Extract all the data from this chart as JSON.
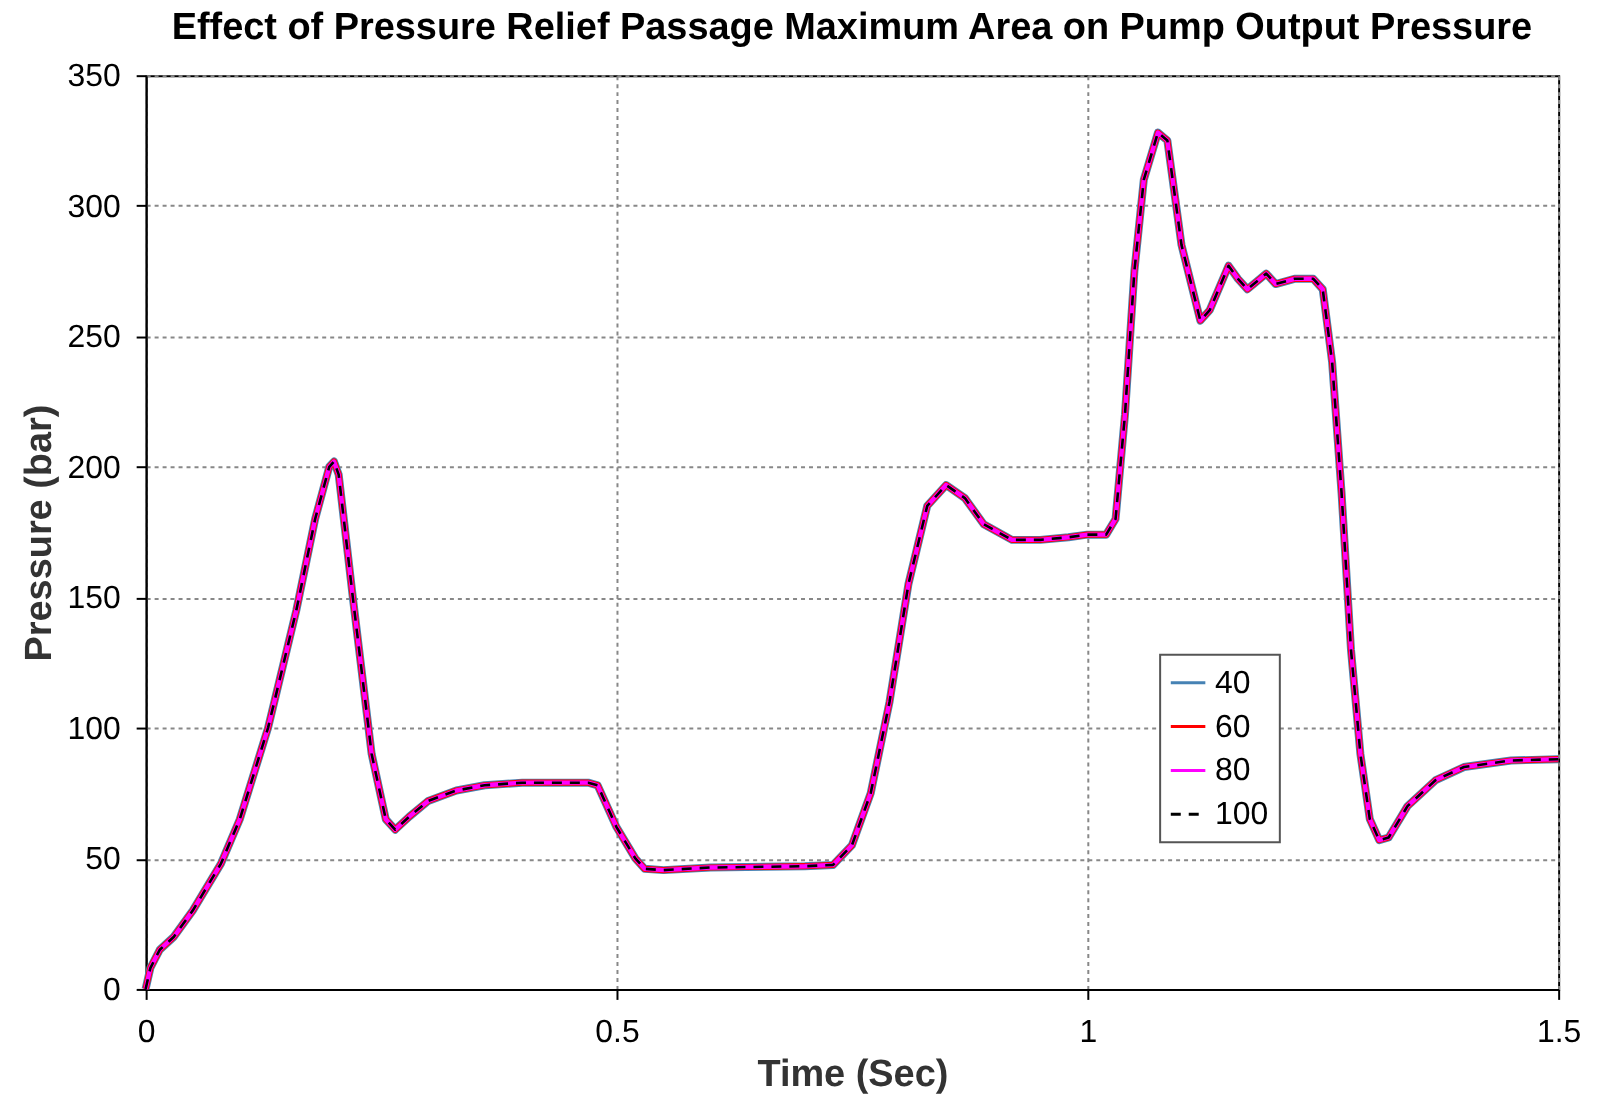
{
  "chart_data": {
    "type": "line",
    "title": "Effect of Pressure Relief Passage Maximum Area on Pump Output Pressure",
    "xlabel": "Time (Sec)",
    "ylabel": "Pressure (bar)",
    "x": [
      0,
      0.005,
      0.015,
      0.03,
      0.05,
      0.08,
      0.1,
      0.13,
      0.16,
      0.18,
      0.195,
      0.2,
      0.205,
      0.22,
      0.24,
      0.255,
      0.265,
      0.28,
      0.3,
      0.33,
      0.36,
      0.4,
      0.47,
      0.48,
      0.5,
      0.52,
      0.53,
      0.55,
      0.6,
      0.7,
      0.73,
      0.75,
      0.77,
      0.79,
      0.81,
      0.83,
      0.85,
      0.87,
      0.89,
      0.92,
      0.95,
      0.98,
      1.0,
      1.02,
      1.03,
      1.04,
      1.05,
      1.06,
      1.075,
      1.085,
      1.1,
      1.12,
      1.13,
      1.15,
      1.16,
      1.17,
      1.19,
      1.2,
      1.22,
      1.24,
      1.25,
      1.26,
      1.27,
      1.28,
      1.29,
      1.3,
      1.31,
      1.32,
      1.34,
      1.37,
      1.4,
      1.45,
      1.5
    ],
    "series": [
      {
        "name": "40",
        "color": "#4682b4",
        "line_style": "solid",
        "values": [
          0,
          8,
          15,
          20,
          30,
          48,
          65,
          100,
          145,
          180,
          200,
          202,
          197,
          150,
          90,
          65,
          61,
          66,
          72,
          76,
          78,
          79,
          79,
          78,
          62,
          50,
          46,
          45.5,
          46.5,
          47,
          47.5,
          55,
          75,
          110,
          155,
          185,
          193,
          188,
          178,
          172,
          172,
          173,
          174,
          174,
          180,
          220,
          275,
          310,
          328,
          325,
          285,
          256,
          260,
          277,
          272,
          268,
          274,
          270,
          272,
          272,
          268,
          240,
          190,
          130,
          90,
          65,
          57,
          58,
          70,
          80,
          85,
          87.5,
          88
        ]
      },
      {
        "name": "60",
        "color": "#ff0000",
        "line_style": "solid",
        "values": [
          0,
          8,
          15,
          20,
          30,
          48,
          65,
          100,
          145,
          180,
          200,
          202,
          197,
          150,
          90,
          65,
          61,
          66,
          72,
          76,
          78,
          79,
          79,
          78,
          62,
          50,
          46,
          45.5,
          46.5,
          47,
          47.5,
          55,
          75,
          110,
          155,
          185,
          193,
          188,
          178,
          172,
          172,
          173,
          174,
          174,
          180,
          220,
          275,
          310,
          328,
          325,
          285,
          256,
          260,
          277,
          272,
          268,
          274,
          270,
          272,
          272,
          268,
          240,
          190,
          130,
          90,
          65,
          57,
          58,
          70,
          80,
          85,
          87.5,
          88
        ]
      },
      {
        "name": "80",
        "color": "#ff00ff",
        "line_style": "solid",
        "values": [
          0,
          8,
          15,
          20,
          30,
          48,
          65,
          100,
          145,
          180,
          200,
          202,
          197,
          150,
          90,
          65,
          61,
          66,
          72,
          76,
          78,
          79,
          79,
          78,
          62,
          50,
          46,
          45.5,
          46.5,
          47,
          47.5,
          55,
          75,
          110,
          155,
          185,
          193,
          188,
          178,
          172,
          172,
          173,
          174,
          174,
          180,
          220,
          275,
          310,
          328,
          325,
          285,
          256,
          260,
          277,
          272,
          268,
          274,
          270,
          272,
          272,
          268,
          240,
          190,
          130,
          90,
          65,
          57,
          58,
          70,
          80,
          85,
          87.5,
          88
        ]
      },
      {
        "name": "100",
        "color": "#000000",
        "line_style": "dashed",
        "values": [
          0,
          8,
          15,
          20,
          30,
          48,
          65,
          100,
          145,
          180,
          200,
          202,
          197,
          150,
          90,
          65,
          61,
          66,
          72,
          76,
          78,
          79,
          79,
          78,
          62,
          50,
          46,
          45.5,
          46.5,
          47,
          47.5,
          55,
          75,
          110,
          155,
          185,
          193,
          188,
          178,
          172,
          172,
          173,
          174,
          174,
          180,
          220,
          275,
          310,
          328,
          325,
          285,
          256,
          260,
          277,
          272,
          268,
          274,
          270,
          272,
          272,
          268,
          240,
          190,
          130,
          90,
          65,
          57,
          58,
          70,
          80,
          85,
          87.5,
          88
        ]
      }
    ],
    "xlim": [
      0,
      1.5
    ],
    "xticks": [
      0,
      0.5,
      1,
      1.5
    ],
    "ylim": [
      0,
      350
    ],
    "yticks": [
      0,
      50,
      100,
      150,
      200,
      250,
      300,
      350
    ],
    "grid": true,
    "legend": "bottom right",
    "marker": "none"
  }
}
